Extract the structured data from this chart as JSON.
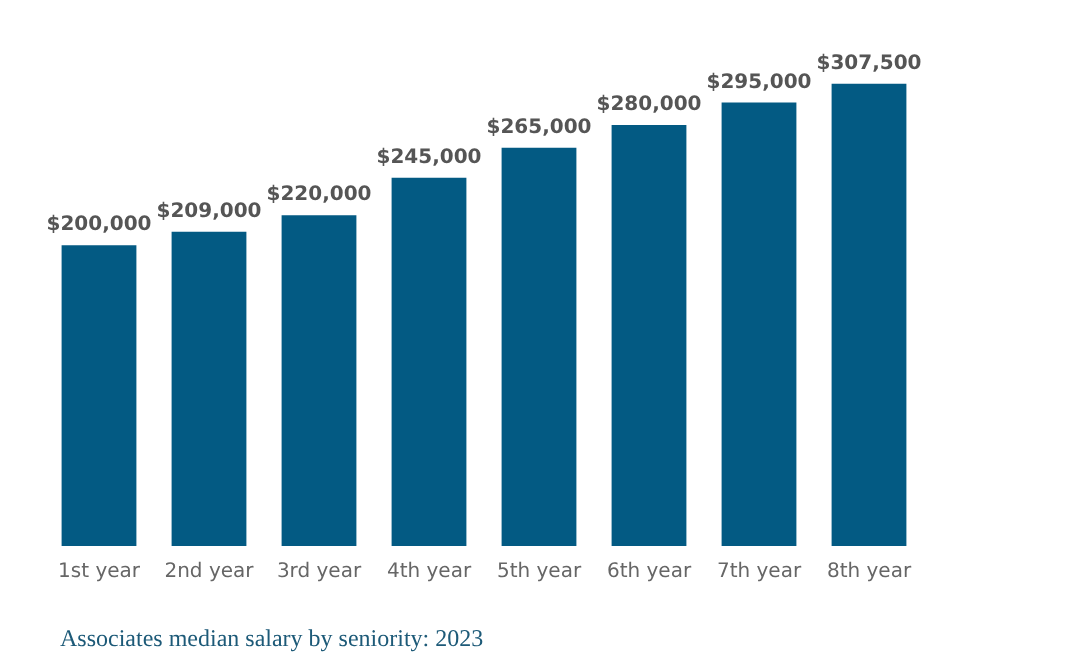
{
  "chart_data": {
    "type": "bar",
    "categories": [
      "1st year",
      "2nd year",
      "3rd year",
      "4th year",
      "5th year",
      "6th year",
      "7th year",
      "8th year"
    ],
    "values": [
      200000,
      209000,
      220000,
      245000,
      265000,
      280000,
      295000,
      307500
    ],
    "value_labels": [
      "$200,000",
      "$209,000",
      "$220,000",
      "$245,000",
      "$265,000",
      "$280,000",
      "$295,000",
      "$307,500"
    ],
    "color": "#035a83",
    "ylim": [
      0,
      310000
    ],
    "annotations": [
      "Associates median salary by seniority: 2023"
    ]
  }
}
